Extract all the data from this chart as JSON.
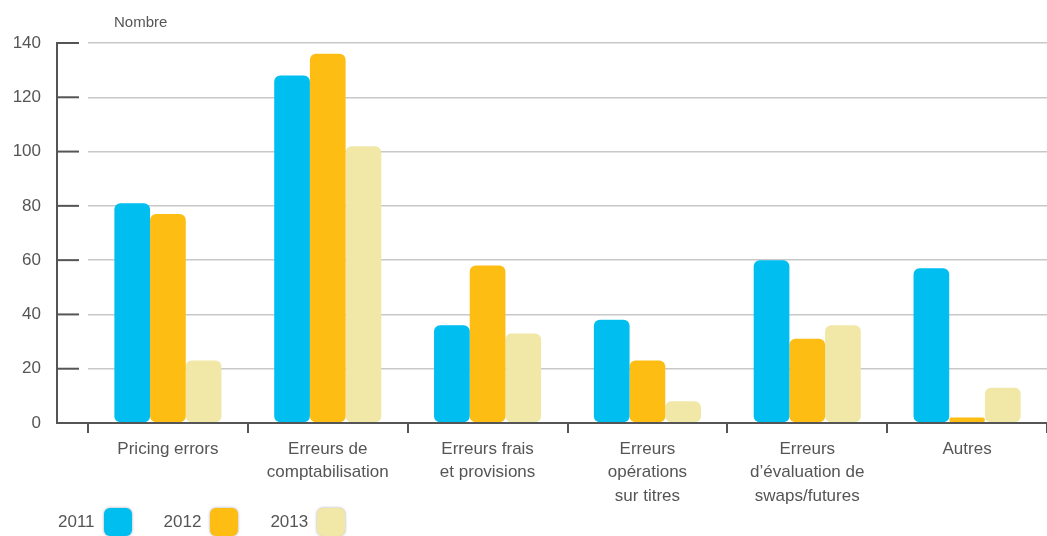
{
  "chart_data": {
    "type": "bar",
    "ylabel": "Nombre",
    "categories": [
      "Pricing errors",
      "Erreurs de comptabilisation",
      "Erreurs frais et provisions",
      "Erreurs opérations sur titres",
      "Erreurs d’évaluation de swaps/futures",
      "Autres"
    ],
    "series": [
      {
        "name": "2011",
        "color": "#00bff0",
        "values": [
          81,
          128,
          36,
          38,
          60,
          57
        ]
      },
      {
        "name": "2012",
        "color": "#fdbd12",
        "values": [
          77,
          136,
          58,
          23,
          31,
          2
        ]
      },
      {
        "name": "2013",
        "color": "#f1e7a7",
        "values": [
          23,
          102,
          33,
          8,
          36,
          13
        ]
      }
    ],
    "ylim": [
      0,
      140
    ],
    "yticks": [
      0,
      20,
      40,
      60,
      80,
      100,
      120,
      140
    ],
    "grid": "y",
    "legend": "bottom left"
  }
}
